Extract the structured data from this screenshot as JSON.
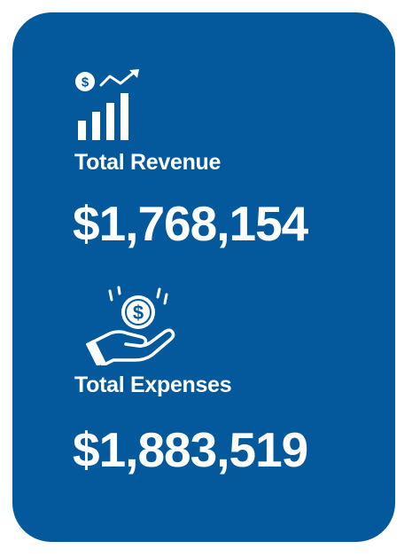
{
  "revenue": {
    "icon": "money-growth-chart-icon",
    "label": "Total Revenue",
    "value": "$1,768,154"
  },
  "expenses": {
    "icon": "hand-coin-icon",
    "label": "Total Expenses",
    "value": "$1,883,519"
  },
  "colors": {
    "card_background": "#04599c",
    "text": "#ffffff",
    "page_background": "#ffffff"
  }
}
